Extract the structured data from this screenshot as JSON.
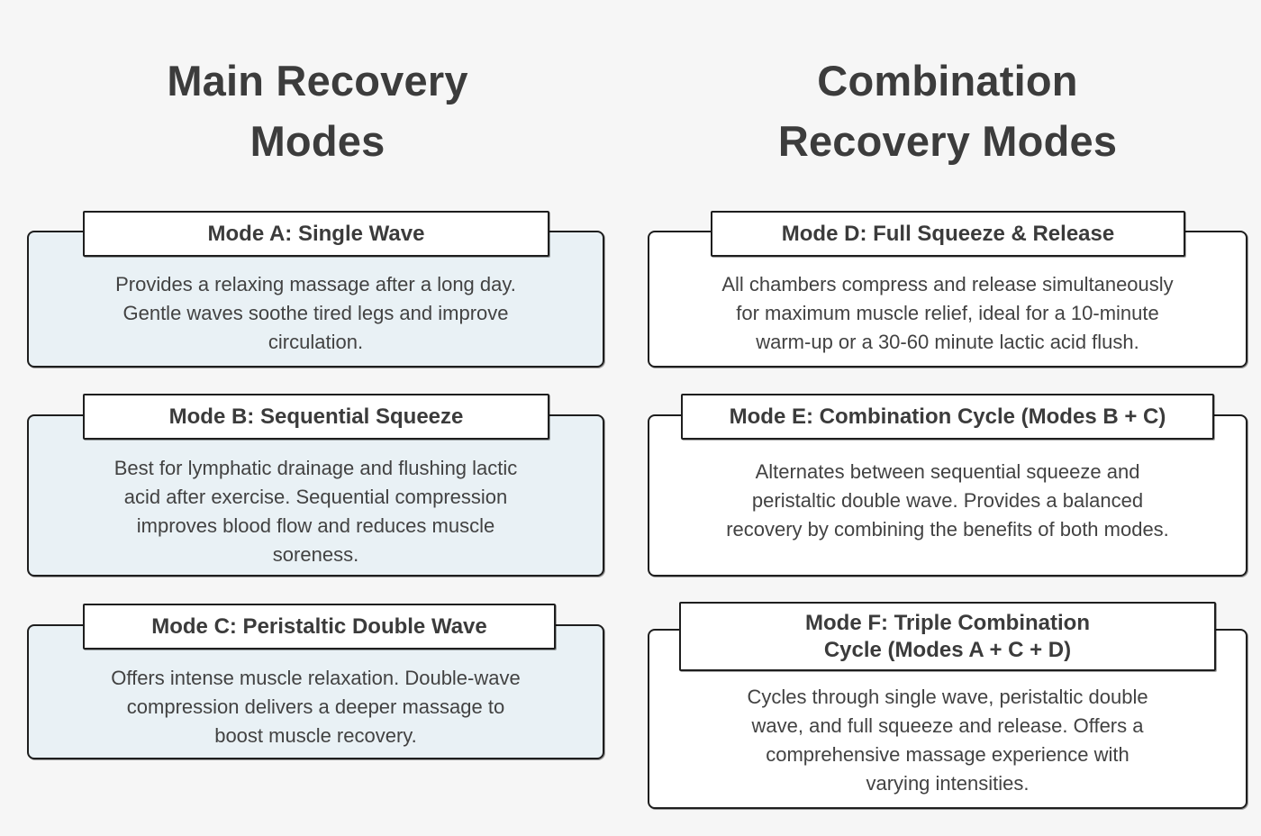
{
  "page": {
    "background_color": "#f6f6f6",
    "text_color": "#3c3c3c",
    "card_border_color": "#1e1e1e",
    "left_card_fill": "#e9f1f5",
    "right_card_fill": "#ffffff",
    "title_box_fill": "#ffffff"
  },
  "columns": [
    {
      "heading": "Main Recovery\nModes",
      "cards": [
        {
          "title": "Mode A: Single Wave",
          "description": "Provides a relaxing massage after a long day.\nGentle waves soothe tired legs and improve\ncirculation."
        },
        {
          "title": "Mode B: Sequential Squeeze",
          "description": "Best for lymphatic drainage and flushing lactic\nacid after exercise. Sequential compression\nimproves blood flow and reduces muscle\nsoreness."
        },
        {
          "title": "Mode C: Peristaltic Double Wave",
          "description": "Offers intense muscle relaxation. Double-wave\ncompression delivers a deeper massage to\nboost muscle recovery."
        }
      ]
    },
    {
      "heading": "Combination\nRecovery Modes",
      "cards": [
        {
          "title": "Mode D: Full Squeeze & Release",
          "description": "All chambers compress and release simultaneously\nfor maximum muscle relief, ideal for a 10-minute\nwarm-up or a 30-60 minute lactic acid flush."
        },
        {
          "title": "Mode E: Combination Cycle (Modes B + C)",
          "description": "Alternates between sequential squeeze and\nperistaltic double wave. Provides a balanced\nrecovery by combining the benefits of both modes."
        },
        {
          "title": "Mode F: Triple Combination\nCycle (Modes A + C + D)",
          "description": "Cycles through single wave, peristaltic double\nwave, and full squeeze and release. Offers a\ncomprehensive massage experience with\nvarying intensities."
        }
      ]
    }
  ]
}
